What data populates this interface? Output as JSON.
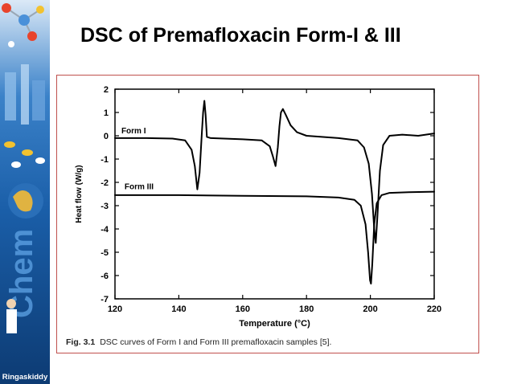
{
  "slide": {
    "title": "DSC of Premafloxacin Form-I & III",
    "banner_text": "Ringaskiddy"
  },
  "figure": {
    "caption_number": "Fig. 3.1",
    "caption_text": "DSC curves of Form I and Form III premafloxacin samples [5]."
  },
  "colors": {
    "frame_border": "#c0504d",
    "curve": "#000000",
    "banner_blue": "#1b63b8"
  },
  "chart_data": {
    "type": "line",
    "xlabel": "Temperature (°C)",
    "ylabel": "Heat flow (W/g)",
    "xlim": [
      120,
      220
    ],
    "ylim": [
      -7,
      2
    ],
    "x_ticks": [
      120,
      140,
      160,
      180,
      200,
      220
    ],
    "y_ticks": [
      2,
      1,
      0,
      -1,
      -2,
      -3,
      -4,
      -5,
      -6,
      -7
    ],
    "grid": false,
    "legend": "inline labels",
    "series": [
      {
        "name": "Form I",
        "label_at": [
          122,
          0.1
        ],
        "points": [
          [
            120,
            -0.1
          ],
          [
            130,
            -0.1
          ],
          [
            138,
            -0.12
          ],
          [
            142,
            -0.2
          ],
          [
            144,
            -0.6
          ],
          [
            145,
            -1.3
          ],
          [
            145.8,
            -2.3
          ],
          [
            146.5,
            -1.6
          ],
          [
            147.2,
            0.1
          ],
          [
            147.6,
            1.0
          ],
          [
            148,
            1.5
          ],
          [
            148.4,
            0.9
          ],
          [
            148.8,
            -0.05
          ],
          [
            150,
            -0.1
          ],
          [
            160,
            -0.15
          ],
          [
            166,
            -0.2
          ],
          [
            168.5,
            -0.45
          ],
          [
            169.5,
            -0.9
          ],
          [
            170.3,
            -1.3
          ],
          [
            171,
            -0.5
          ],
          [
            171.5,
            0.4
          ],
          [
            172,
            1.0
          ],
          [
            172.6,
            1.15
          ],
          [
            173.5,
            0.9
          ],
          [
            175,
            0.45
          ],
          [
            177,
            0.15
          ],
          [
            180,
            0.0
          ],
          [
            190,
            -0.1
          ],
          [
            196,
            -0.2
          ],
          [
            198,
            -0.5
          ],
          [
            199.5,
            -1.2
          ],
          [
            200.5,
            -2.5
          ],
          [
            201.2,
            -4.0
          ],
          [
            201.7,
            -4.6
          ],
          [
            202.2,
            -3.5
          ],
          [
            203,
            -1.5
          ],
          [
            204,
            -0.4
          ],
          [
            206,
            0.0
          ],
          [
            210,
            0.05
          ],
          [
            215,
            0.0
          ],
          [
            220,
            0.1
          ]
        ]
      },
      {
        "name": "Form III",
        "label_at": [
          123,
          -2.3
        ],
        "points": [
          [
            120,
            -2.55
          ],
          [
            140,
            -2.55
          ],
          [
            160,
            -2.58
          ],
          [
            180,
            -2.6
          ],
          [
            190,
            -2.65
          ],
          [
            195,
            -2.75
          ],
          [
            197,
            -3.0
          ],
          [
            198.5,
            -3.8
          ],
          [
            199.3,
            -5.0
          ],
          [
            199.9,
            -6.2
          ],
          [
            200.2,
            -6.35
          ],
          [
            200.6,
            -5.5
          ],
          [
            201.2,
            -3.8
          ],
          [
            202,
            -2.9
          ],
          [
            203.5,
            -2.55
          ],
          [
            206,
            -2.45
          ],
          [
            212,
            -2.42
          ],
          [
            220,
            -2.4
          ]
        ]
      }
    ]
  }
}
